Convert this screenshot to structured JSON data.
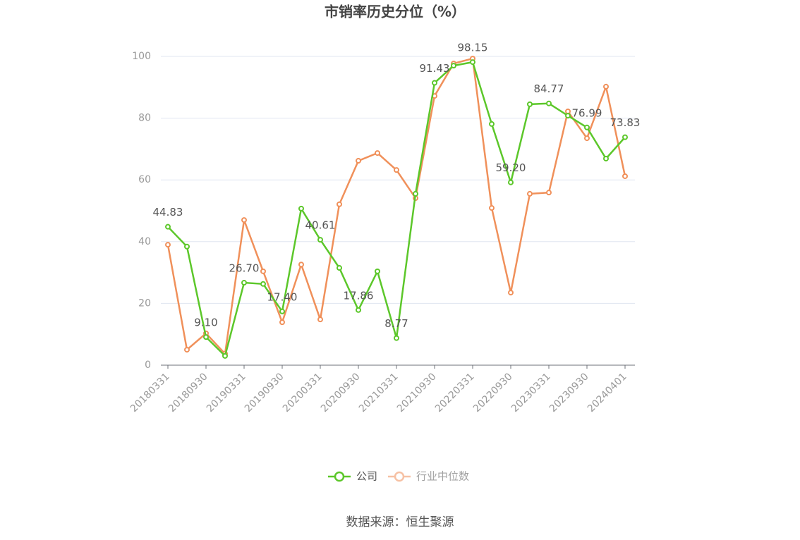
{
  "chart_data": {
    "type": "line",
    "title": "市销率历史分位（%）",
    "source": "数据来源：恒生聚源",
    "categories": [
      "20180331",
      null,
      "20180930",
      null,
      "20190331",
      null,
      "20190930",
      null,
      "20200331",
      null,
      "20200930",
      null,
      "20210331",
      null,
      "20210930",
      null,
      "20220331",
      null,
      "20220930",
      null,
      "20230331",
      null,
      "20230930",
      null,
      "20240401"
    ],
    "series": [
      {
        "name": "公司",
        "color": "#5cc72a",
        "values": [
          44.83,
          38.4,
          9.1,
          3.0,
          26.7,
          26.3,
          17.4,
          50.7,
          40.61,
          31.5,
          17.86,
          30.4,
          8.77,
          55.5,
          91.43,
          97.0,
          98.15,
          78.1,
          59.2,
          84.5,
          84.77,
          80.8,
          76.99,
          66.9,
          73.83
        ],
        "value_labels": [
          "44.83",
          null,
          "9.10",
          null,
          "26.70",
          null,
          "17.40",
          null,
          "40.61",
          null,
          "17.86",
          null,
          "8.77",
          null,
          "91.43",
          null,
          "98.15",
          null,
          "59.20",
          null,
          "84.77",
          null,
          "76.99",
          null,
          "73.83"
        ]
      },
      {
        "name": "行业中位数",
        "color": "#f0905a",
        "values": [
          39.0,
          5.0,
          10.3,
          3.7,
          47.0,
          30.4,
          13.9,
          32.6,
          14.8,
          52.1,
          66.2,
          68.7,
          63.2,
          54.1,
          87.2,
          97.7,
          99.3,
          50.9,
          23.5,
          55.5,
          55.9,
          82.2,
          73.5,
          90.2,
          61.2
        ]
      }
    ],
    "ylim": [
      0,
      100
    ],
    "yticks": [
      0,
      20,
      40,
      60,
      80,
      100
    ],
    "grid": true,
    "legend": "bottom"
  }
}
